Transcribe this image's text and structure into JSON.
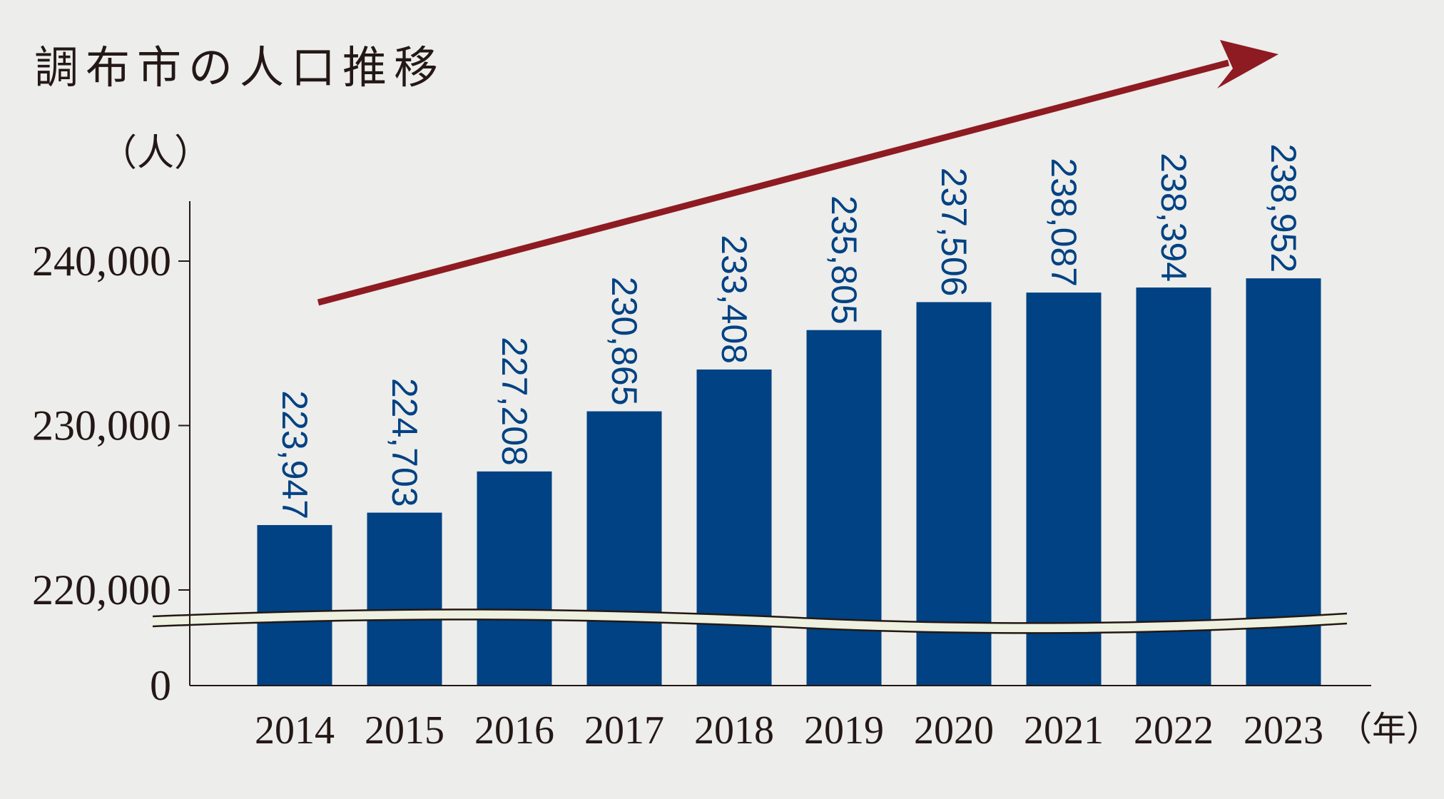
{
  "title": "調布市の人口推移",
  "unit_label": "（人）",
  "colors": {
    "bar": "#004283",
    "arrow": "#8e1b22",
    "axis": "#231815",
    "break_band": "#eef0e0",
    "background": "#ededeb"
  },
  "chart_data": {
    "type": "bar",
    "title": "調布市の人口推移",
    "ylabel": "（人）",
    "xlabel": "（年）",
    "categories": [
      "2014",
      "2015",
      "2016",
      "2017",
      "2018",
      "2019",
      "2020",
      "2021",
      "2022",
      "2023"
    ],
    "values": [
      223947,
      224703,
      227208,
      230865,
      233408,
      235805,
      237506,
      238087,
      238394,
      238952
    ],
    "value_labels": [
      "223,947",
      "224,703",
      "227,208",
      "230,865",
      "233,408",
      "235,805",
      "237,506",
      "238,087",
      "238,394",
      "238,952"
    ],
    "y_ticks": [
      {
        "value": 0,
        "label": "0"
      },
      {
        "value": 220000,
        "label": "220,000"
      },
      {
        "value": 230000,
        "label": "230,000"
      },
      {
        "value": 240000,
        "label": "240,000"
      }
    ],
    "ylim": [
      0,
      240000
    ],
    "axis_break": {
      "from": 0,
      "to": 220000
    },
    "grid": false,
    "legend": "none",
    "trend_arrow": true
  }
}
